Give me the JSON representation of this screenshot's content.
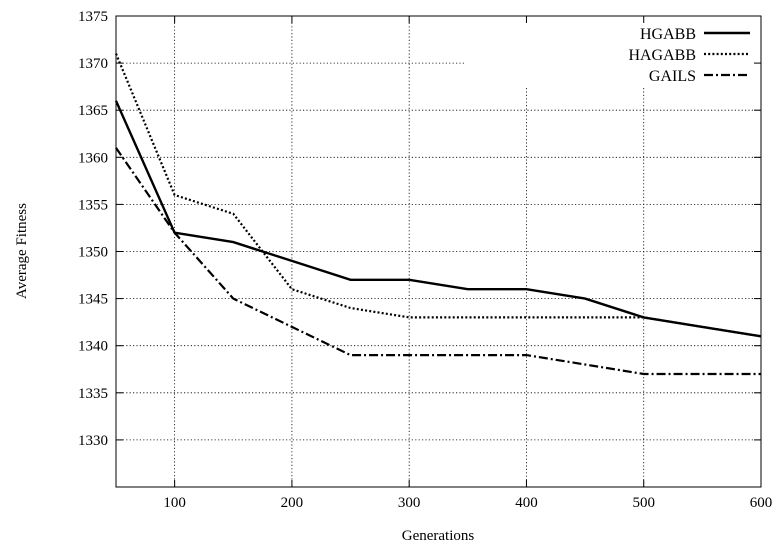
{
  "chart_data": {
    "type": "line",
    "xlabel": "Generations",
    "ylabel": "Average Fitness",
    "xlim": [
      50,
      600
    ],
    "ylim": [
      1325,
      1375
    ],
    "x_ticks": [
      100,
      200,
      300,
      400,
      500,
      600
    ],
    "y_ticks": [
      1330,
      1335,
      1340,
      1345,
      1350,
      1355,
      1360,
      1365,
      1370,
      1375
    ],
    "grid": true,
    "legend_position": "top-right",
    "x": [
      50,
      100,
      150,
      200,
      250,
      300,
      350,
      400,
      450,
      500,
      550,
      600
    ],
    "series": [
      {
        "name": "HGABB",
        "style": "solid",
        "color": "#000000",
        "values": [
          1366,
          1352,
          1351,
          1349,
          1347,
          1347,
          1346,
          1346,
          1345,
          1343,
          1342,
          1341
        ]
      },
      {
        "name": "HAGABB",
        "style": "dotted",
        "color": "#000000",
        "values": [
          1371,
          1356,
          1354,
          1346,
          1344,
          1343,
          1343,
          1343,
          1343,
          1343,
          1342,
          1341
        ]
      },
      {
        "name": "GAILS",
        "style": "dash-dot",
        "color": "#000000",
        "values": [
          1361,
          1352,
          1345,
          1342,
          1339,
          1339,
          1339,
          1339,
          1338,
          1337,
          1337,
          1337
        ]
      }
    ]
  }
}
